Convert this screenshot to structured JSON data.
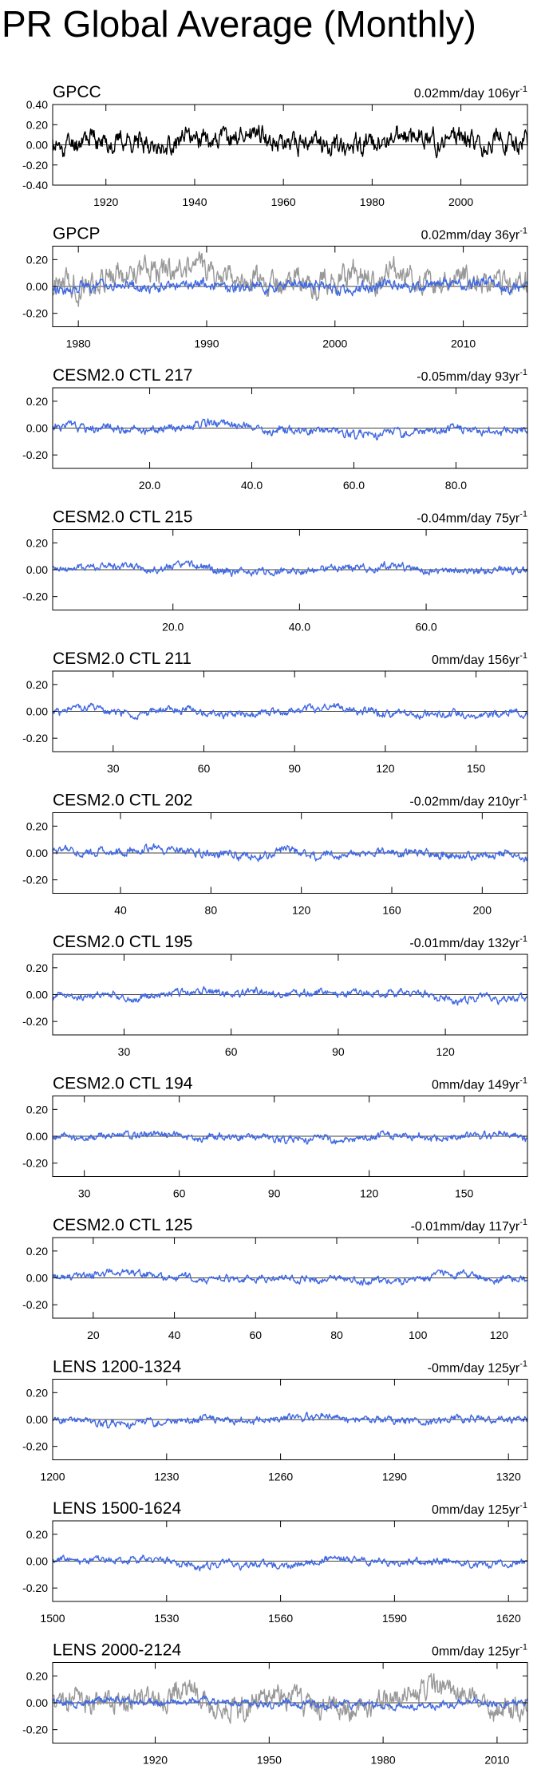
{
  "title": "PR Global Average (Monthly)",
  "chart_data": [
    {
      "type": "line",
      "label": "GPCC",
      "trend": "0.02mm/day 106yr",
      "trend_sup": "-1",
      "yticks": [
        "0.40",
        "0.20",
        "0.00",
        "-0.20",
        "-0.40"
      ],
      "ylim": [
        -0.4,
        0.4
      ],
      "xlim": [
        1908,
        2015
      ],
      "xticks": [
        "1920",
        "1940",
        "1960",
        "1980",
        "2000"
      ],
      "series": [
        {
          "color": "#000000",
          "amplitude": 0.13,
          "seed": 11,
          "drift": 0.02
        }
      ]
    },
    {
      "type": "line",
      "label": "GPCP",
      "trend": "0.02mm/day 36yr",
      "trend_sup": "-1",
      "yticks": [
        "0.20",
        "0.00",
        "-0.20"
      ],
      "ylim": [
        -0.3,
        0.3
      ],
      "xlim": [
        1978,
        2015
      ],
      "xticks": [
        "1980",
        "1990",
        "2000",
        "2010"
      ],
      "series": [
        {
          "color": "#999999",
          "amplitude": 0.12,
          "seed": 21,
          "drift": 0.02
        },
        {
          "color": "#4169e1",
          "amplitude": 0.05,
          "seed": 22,
          "drift": 0.0
        }
      ]
    },
    {
      "type": "line",
      "label": "CESM2.0 CTL 217",
      "trend": "-0.05mm/day 93yr",
      "trend_sup": "-1",
      "yticks": [
        "0.20",
        "0.00",
        "-0.20"
      ],
      "ylim": [
        -0.3,
        0.3
      ],
      "xlim": [
        1,
        94
      ],
      "xticks": [
        "20.0",
        "40.0",
        "60.0",
        "80.0"
      ],
      "series": [
        {
          "color": "#4169e1",
          "amplitude": 0.04,
          "seed": 31,
          "drift": -0.05
        }
      ]
    },
    {
      "type": "line",
      "label": "CESM2.0 CTL 215",
      "trend": "-0.04mm/day 75yr",
      "trend_sup": "-1",
      "yticks": [
        "0.20",
        "0.00",
        "-0.20"
      ],
      "ylim": [
        -0.3,
        0.3
      ],
      "xlim": [
        1,
        76
      ],
      "xticks": [
        "20.0",
        "40.0",
        "60.0"
      ],
      "series": [
        {
          "color": "#4169e1",
          "amplitude": 0.035,
          "seed": 41,
          "drift": -0.04
        }
      ]
    },
    {
      "type": "line",
      "label": "CESM2.0 CTL 211",
      "trend": "0mm/day 156yr",
      "trend_sup": "-1",
      "yticks": [
        "0.20",
        "0.00",
        "-0.20"
      ],
      "ylim": [
        -0.3,
        0.3
      ],
      "xlim": [
        10,
        167
      ],
      "xticks": [
        "30",
        "60",
        "90",
        "120",
        "150"
      ],
      "series": [
        {
          "color": "#4169e1",
          "amplitude": 0.035,
          "seed": 51,
          "drift": 0.0
        }
      ]
    },
    {
      "type": "line",
      "label": "CESM2.0 CTL 202",
      "trend": "-0.02mm/day 210yr",
      "trend_sup": "-1",
      "yticks": [
        "0.20",
        "0.00",
        "-0.20"
      ],
      "ylim": [
        -0.3,
        0.3
      ],
      "xlim": [
        10,
        220
      ],
      "xticks": [
        "40",
        "80",
        "120",
        "160",
        "200"
      ],
      "series": [
        {
          "color": "#4169e1",
          "amplitude": 0.04,
          "seed": 61,
          "drift": -0.02
        }
      ]
    },
    {
      "type": "line",
      "label": "CESM2.0 CTL 195",
      "trend": "-0.01mm/day 132yr",
      "trend_sup": "-1",
      "yticks": [
        "0.20",
        "0.00",
        "-0.20"
      ],
      "ylim": [
        -0.3,
        0.3
      ],
      "xlim": [
        10,
        143
      ],
      "xticks": [
        "30",
        "60",
        "90",
        "120"
      ],
      "series": [
        {
          "color": "#4169e1",
          "amplitude": 0.035,
          "seed": 71,
          "drift": -0.01
        }
      ]
    },
    {
      "type": "line",
      "label": "CESM2.0 CTL 194",
      "trend": "0mm/day 149yr",
      "trend_sup": "-1",
      "yticks": [
        "0.20",
        "0.00",
        "-0.20"
      ],
      "ylim": [
        -0.3,
        0.3
      ],
      "xlim": [
        20,
        170
      ],
      "xticks": [
        "30",
        "60",
        "90",
        "120",
        "150"
      ],
      "series": [
        {
          "color": "#4169e1",
          "amplitude": 0.035,
          "seed": 81,
          "drift": 0.0
        }
      ]
    },
    {
      "type": "line",
      "label": "CESM2.0 CTL 125",
      "trend": "-0.01mm/day 117yr",
      "trend_sup": "-1",
      "yticks": [
        "0.20",
        "0.00",
        "-0.20"
      ],
      "ylim": [
        -0.3,
        0.3
      ],
      "xlim": [
        10,
        127
      ],
      "xticks": [
        "20",
        "40",
        "60",
        "80",
        "100",
        "120"
      ],
      "series": [
        {
          "color": "#4169e1",
          "amplitude": 0.035,
          "seed": 91,
          "drift": -0.01
        }
      ]
    },
    {
      "type": "line",
      "label": "LENS 1200-1324",
      "trend": "-0mm/day 125yr",
      "trend_sup": "-1",
      "yticks": [
        "0.20",
        "0.00",
        "-0.20"
      ],
      "ylim": [
        -0.3,
        0.3
      ],
      "xlim": [
        1200,
        1325
      ],
      "xticks": [
        "1200",
        "1230",
        "1260",
        "1290",
        "1320"
      ],
      "series": [
        {
          "color": "#4169e1",
          "amplitude": 0.035,
          "seed": 101,
          "drift": 0.0
        }
      ]
    },
    {
      "type": "line",
      "label": "LENS 1500-1624",
      "trend": "0mm/day 125yr",
      "trend_sup": "-1",
      "yticks": [
        "0.20",
        "0.00",
        "-0.20"
      ],
      "ylim": [
        -0.3,
        0.3
      ],
      "xlim": [
        1500,
        1625
      ],
      "xticks": [
        "1500",
        "1530",
        "1560",
        "1590",
        "1620"
      ],
      "series": [
        {
          "color": "#4169e1",
          "amplitude": 0.033,
          "seed": 111,
          "drift": 0.0
        }
      ]
    },
    {
      "type": "line",
      "label": "LENS 2000-2124",
      "trend": "0mm/day 125yr",
      "trend_sup": "-1",
      "yticks": [
        "0.20",
        "0.00",
        "-0.20"
      ],
      "ylim": [
        -0.3,
        0.3
      ],
      "xlim": [
        1893,
        2018
      ],
      "xticks": [
        "1920",
        "1950",
        "1980",
        "2010"
      ],
      "series": [
        {
          "color": "#999999",
          "amplitude": 0.11,
          "seed": 121,
          "drift": 0.02
        },
        {
          "color": "#4169e1",
          "amplitude": 0.035,
          "seed": 122,
          "drift": 0.0
        }
      ]
    }
  ]
}
